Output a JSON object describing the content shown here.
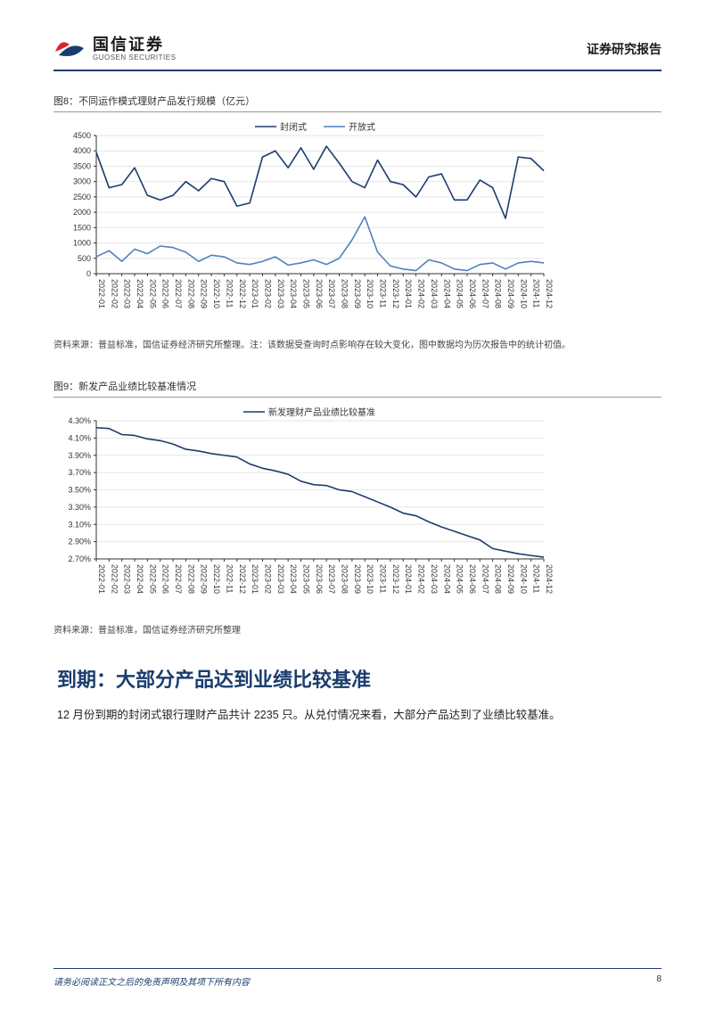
{
  "header": {
    "logo_cn": "国信证券",
    "logo_en": "GUOSEN SECURITIES",
    "right": "证券研究报告"
  },
  "fig8": {
    "label": "图8：不同运作模式理财产品发行规模（亿元）",
    "type": "line",
    "legend": [
      "封闭式",
      "开放式"
    ],
    "categories": [
      "2022-01",
      "2022-02",
      "2022-03",
      "2022-04",
      "2022-05",
      "2022-06",
      "2022-07",
      "2022-08",
      "2022-09",
      "2022-10",
      "2022-11",
      "2022-12",
      "2023-01",
      "2023-02",
      "2023-03",
      "2023-04",
      "2023-05",
      "2023-06",
      "2023-07",
      "2023-08",
      "2023-09",
      "2023-10",
      "2023-11",
      "2023-12",
      "2024-01",
      "2024-02",
      "2024-03",
      "2024-04",
      "2024-05",
      "2024-06",
      "2024-07",
      "2024-08",
      "2024-09",
      "2024-10",
      "2024-11",
      "2024-12"
    ],
    "series": [
      {
        "name": "封闭式",
        "color": "#1a3d6d",
        "width": 1.6,
        "values": [
          3950,
          2800,
          2900,
          3450,
          2550,
          2400,
          2550,
          3000,
          2700,
          3100,
          3000,
          2200,
          2300,
          3800,
          4000,
          3450,
          4100,
          3400,
          4150,
          3600,
          3000,
          2800,
          3700,
          3000,
          2900,
          2500,
          3150,
          3250,
          2400,
          2400,
          3050,
          2800,
          1800,
          3800,
          3750,
          3350
        ]
      },
      {
        "name": "开放式",
        "color": "#4f81bd",
        "width": 1.6,
        "values": [
          550,
          750,
          400,
          800,
          650,
          900,
          850,
          700,
          400,
          600,
          550,
          350,
          300,
          400,
          550,
          280,
          350,
          450,
          300,
          500,
          1100,
          1850,
          700,
          250,
          150,
          100,
          450,
          350,
          150,
          100,
          300,
          350,
          150,
          350,
          400,
          350
        ]
      }
    ],
    "ylim": [
      0,
      4500
    ],
    "ytick_step": 500,
    "axis_color": "#333",
    "grid_color": "#e6e6e6",
    "bg": "#ffffff",
    "tick_fontsize": 9,
    "label_rotate": -90,
    "src": "资料来源：普益标准，国信证券经济研究所整理。注：该数据受查询时点影响存在较大变化，图中数据均为历次报告中的统计初值。"
  },
  "fig9": {
    "label": "图9：新发产品业绩比较基准情况",
    "type": "line",
    "legend": [
      "新发理财产品业绩比较基准"
    ],
    "categories": [
      "2022-01",
      "2022-02",
      "2022-03",
      "2022-04",
      "2022-05",
      "2022-06",
      "2022-07",
      "2022-08",
      "2022-09",
      "2022-10",
      "2022-11",
      "2022-12",
      "2023-01",
      "2023-02",
      "2023-03",
      "2023-04",
      "2023-05",
      "2023-06",
      "2023-07",
      "2023-08",
      "2023-09",
      "2023-10",
      "2023-11",
      "2023-12",
      "2024-01",
      "2024-02",
      "2024-03",
      "2024-04",
      "2024-05",
      "2024-06",
      "2024-07",
      "2024-08",
      "2024-09",
      "2024-10",
      "2024-11",
      "2024-12"
    ],
    "series": [
      {
        "name": "新发理财产品业绩比较基准",
        "color": "#1a3d6d",
        "width": 1.6,
        "values": [
          4.22,
          4.21,
          4.14,
          4.13,
          4.09,
          4.07,
          4.03,
          3.97,
          3.95,
          3.92,
          3.9,
          3.88,
          3.8,
          3.75,
          3.72,
          3.68,
          3.6,
          3.56,
          3.55,
          3.5,
          3.48,
          3.42,
          3.36,
          3.3,
          3.23,
          3.2,
          3.13,
          3.07,
          3.02,
          2.97,
          2.92,
          2.82,
          2.79,
          2.76,
          2.74,
          2.72
        ]
      }
    ],
    "ylim": [
      2.7,
      4.3
    ],
    "ytick_step": 0.2,
    "y_fmt": "pct2",
    "axis_color": "#333",
    "grid_color": "#e6e6e6",
    "bg": "#ffffff",
    "tick_fontsize": 9,
    "label_rotate": -90,
    "src": "资料来源：普益标准，国信证券经济研究所整理"
  },
  "section": {
    "heading": "到期：大部分产品达到业绩比较基准",
    "body": "12 月份到期的封闭式银行理财产品共计 2235 只。从兑付情况来看，大部分产品达到了业绩比较基准。"
  },
  "footer": {
    "left": "请务必阅读正文之后的免责声明及其项下所有内容",
    "page": "8"
  },
  "logo_colors": {
    "red": "#d8232a",
    "blue": "#1a3d6d"
  }
}
